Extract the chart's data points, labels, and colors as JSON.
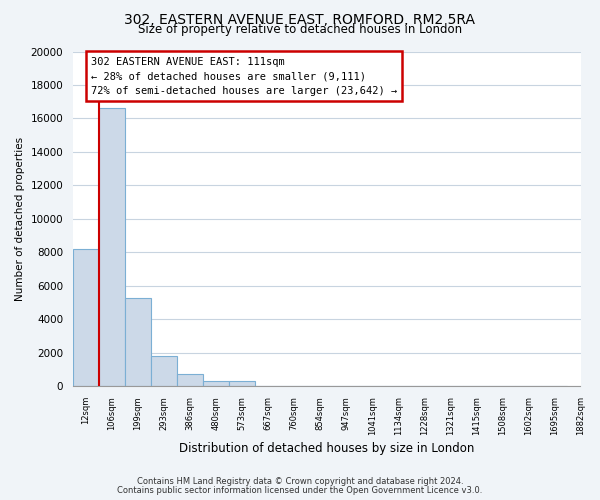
{
  "title": "302, EASTERN AVENUE EAST, ROMFORD, RM2 5RA",
  "subtitle": "Size of property relative to detached houses in London",
  "xlabel": "Distribution of detached houses by size in London",
  "ylabel": "Number of detached properties",
  "bar_values": [
    8200,
    16600,
    5300,
    1800,
    750,
    300,
    300,
    0,
    0,
    0,
    0,
    0,
    0,
    0,
    0,
    0,
    0,
    0,
    0
  ],
  "bin_labels": [
    "12sqm",
    "106sqm",
    "199sqm",
    "293sqm",
    "386sqm",
    "480sqm",
    "573sqm",
    "667sqm",
    "760sqm",
    "854sqm",
    "947sqm",
    "1041sqm",
    "1134sqm",
    "1228sqm",
    "1321sqm",
    "1415sqm",
    "1508sqm",
    "1602sqm",
    "1695sqm",
    "1882sqm"
  ],
  "bar_color": "#ccd9e8",
  "bar_edge_color": "#7bafd4",
  "vline_x": 0.5,
  "vline_color": "#cc0000",
  "annotation_line1": "302 EASTERN AVENUE EAST: 111sqm",
  "annotation_line2": "← 28% of detached houses are smaller (9,111)",
  "annotation_line3": "72% of semi-detached houses are larger (23,642) →",
  "ylim": [
    0,
    20000
  ],
  "yticks": [
    0,
    2000,
    4000,
    6000,
    8000,
    10000,
    12000,
    14000,
    16000,
    18000,
    20000
  ],
  "footer_line1": "Contains HM Land Registry data © Crown copyright and database right 2024.",
  "footer_line2": "Contains public sector information licensed under the Open Government Licence v3.0.",
  "bg_color": "#f0f4f8",
  "plot_bg_color": "#ffffff",
  "grid_color": "#c8d4e0",
  "ann_box_color": "#cc0000",
  "title_fontsize": 10,
  "subtitle_fontsize": 8.5
}
